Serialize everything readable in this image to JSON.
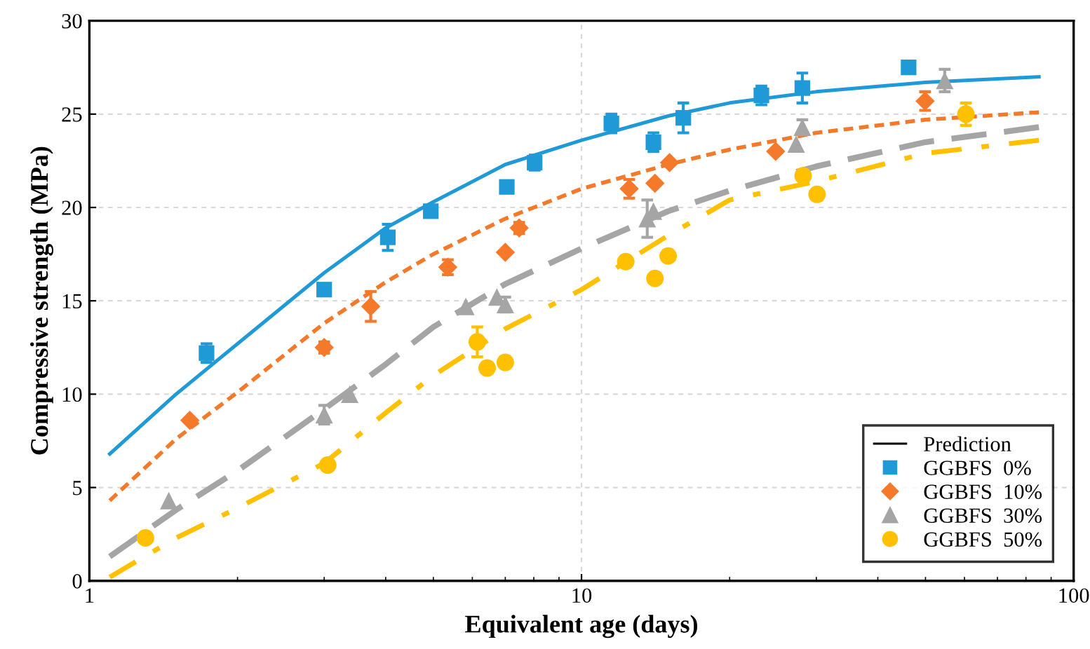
{
  "chart_data": {
    "type": "scatter",
    "xlabel": "Equivalent age (days)",
    "ylabel": "Compressive strength (MPa)",
    "log": "x",
    "xlim": [
      1,
      100
    ],
    "xticks": [
      1,
      10,
      100
    ],
    "ylim": [
      0,
      30
    ],
    "yticks": [
      0,
      5,
      10,
      15,
      20,
      25,
      30
    ],
    "grid": true,
    "legend": "bottom right",
    "legend_title": "Prediction",
    "series": [
      {
        "type": "line",
        "color": "#1f9ad6",
        "line_style": "solid",
        "marker": "none",
        "x": [
          1.1,
          1.5,
          2,
          3,
          4,
          5,
          7,
          10,
          15,
          20,
          30,
          50,
          85
        ],
        "values": [
          6.8,
          10.0,
          12.7,
          16.5,
          18.9,
          20.3,
          22.3,
          23.6,
          24.9,
          25.6,
          26.2,
          26.7,
          27.0
        ]
      },
      {
        "type": "line",
        "color": "#f5792a",
        "line_style": "dotted",
        "marker": "none",
        "x": [
          1.1,
          1.5,
          2,
          3,
          4,
          5,
          7,
          10,
          15,
          20,
          30,
          50,
          85
        ],
        "values": [
          4.3,
          7.6,
          10.1,
          13.8,
          16.0,
          17.5,
          19.4,
          21.0,
          22.3,
          23.1,
          24.0,
          24.7,
          25.1
        ]
      },
      {
        "type": "line",
        "color": "#a5a5a5",
        "line_style": "dashed",
        "marker": "none",
        "x": [
          1.1,
          1.5,
          2,
          3,
          4,
          5,
          7,
          10,
          15,
          20,
          30,
          50,
          85
        ],
        "values": [
          1.3,
          3.8,
          5.9,
          9.2,
          11.6,
          13.6,
          15.9,
          17.8,
          19.8,
          20.9,
          22.2,
          23.5,
          24.3
        ]
      },
      {
        "type": "line",
        "color": "#ffc000",
        "line_style": "dashdot",
        "marker": "none",
        "x": [
          1.1,
          1.5,
          2,
          3,
          4,
          5,
          7,
          10,
          15,
          20,
          30,
          50,
          85
        ],
        "values": [
          0.2,
          2.3,
          3.9,
          6.3,
          9.0,
          11.0,
          13.5,
          15.6,
          18.5,
          20.4,
          21.4,
          22.9,
          23.6
        ]
      },
      {
        "name": "GGBFS  0%",
        "color": "#1f9ad6",
        "marker": "square",
        "x": [
          1.73,
          3.0,
          4.04,
          4.94,
          7.05,
          8.03,
          11.5,
          14.0,
          16.1,
          23.2,
          28.1,
          46.2
        ],
        "values": [
          12.2,
          15.6,
          18.4,
          19.8,
          21.1,
          22.4,
          24.5,
          23.5,
          24.8,
          26.0,
          26.4,
          27.5
        ],
        "errors": [
          0.5,
          0.2,
          0.7,
          0.3,
          null,
          0.4,
          0.5,
          0.5,
          0.8,
          0.5,
          0.8,
          0.3
        ]
      },
      {
        "name": "GGBFS  10%",
        "color": "#f5792a",
        "marker": "diamond",
        "x": [
          1.6,
          3.0,
          3.73,
          5.35,
          7.0,
          7.47,
          12.5,
          14.1,
          15.1,
          24.8,
          49.9
        ],
        "values": [
          8.6,
          12.5,
          14.7,
          16.8,
          17.6,
          18.9,
          21.0,
          21.3,
          22.4,
          23.0,
          25.7
        ],
        "errors": [
          null,
          0.3,
          0.8,
          0.4,
          null,
          0.3,
          0.5,
          null,
          null,
          null,
          0.5
        ]
      },
      {
        "name": "GGBFS  30%",
        "color": "#a5a5a5",
        "marker": "triangle",
        "x": [
          1.45,
          3.0,
          3.38,
          5.82,
          6.73,
          7.0,
          13.6,
          14.0,
          27.3,
          28.1,
          54.7
        ],
        "values": [
          4.3,
          8.9,
          10.0,
          14.7,
          15.2,
          14.8,
          19.4,
          19.8,
          23.4,
          24.3,
          26.8
        ],
        "errors": [
          null,
          0.5,
          null,
          null,
          null,
          0.4,
          1.0,
          null,
          null,
          0.4,
          0.6
        ]
      },
      {
        "name": "GGBFS  50%",
        "color": "#ffc000",
        "marker": "circle",
        "x": [
          1.3,
          3.05,
          6.14,
          6.43,
          7.0,
          12.3,
          14.1,
          15.0,
          28.2,
          30.1,
          60.4
        ],
        "values": [
          2.3,
          6.2,
          12.8,
          11.4,
          11.7,
          17.1,
          16.2,
          17.4,
          21.7,
          20.7,
          25.0
        ],
        "errors": [
          null,
          null,
          0.8,
          null,
          null,
          null,
          null,
          null,
          null,
          null,
          0.6
        ]
      }
    ]
  }
}
